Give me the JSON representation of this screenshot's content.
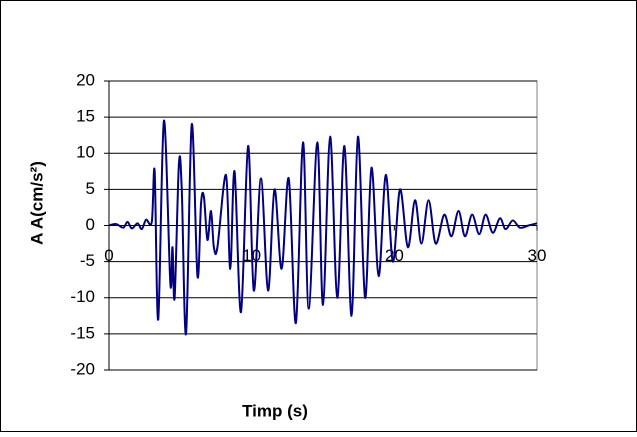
{
  "chart_data": {
    "type": "line",
    "x_label": "Timp (s)",
    "y_label": "A A(cm/s²)",
    "xlim": [
      0,
      30
    ],
    "xticks": [
      0,
      10,
      20,
      30
    ],
    "ylim": [
      -20,
      20
    ],
    "yticks": [
      -20,
      -15,
      -10,
      -5,
      0,
      5,
      10,
      15,
      20
    ],
    "grid": true,
    "series": [
      {
        "color": "#000080",
        "x": [
          0,
          0.5,
          1,
          1.3,
          1.6,
          2,
          2.3,
          2.6,
          3.0,
          3.2,
          3.45,
          3.85,
          4.3,
          4.45,
          4.6,
          4.9,
          5.1,
          5.4,
          5.8,
          6.2,
          6.45,
          6.65,
          6.9,
          7.15,
          7.35,
          7.6,
          8.2,
          8.5,
          8.8,
          9.25,
          9.75,
          10.15,
          10.65,
          11.15,
          11.6,
          12.1,
          12.6,
          13.1,
          13.6,
          14.0,
          14.6,
          15.0,
          15.5,
          16.0,
          16.5,
          17.0,
          17.45,
          17.95,
          18.4,
          18.9,
          19.4,
          19.9,
          20.4,
          20.95,
          21.45,
          21.9,
          22.4,
          22.9,
          23.5,
          24.0,
          24.5,
          24.95,
          25.45,
          25.95,
          26.4,
          26.9,
          27.4,
          27.8,
          28.3,
          28.8,
          29.4,
          30
        ],
        "values": [
          0,
          0.2,
          -0.3,
          0.5,
          -0.4,
          0.3,
          -0.5,
          0.8,
          0.5,
          7.5,
          -13,
          14.5,
          -8,
          -3,
          -10,
          8.5,
          5,
          -15,
          14,
          -7,
          3,
          4,
          -2,
          2,
          -3,
          -3,
          7,
          -6,
          7.5,
          -12,
          11,
          -9,
          6.5,
          -9,
          5,
          -6,
          6.5,
          -13.5,
          11.5,
          -11.5,
          11.5,
          -11,
          12.3,
          -10,
          11,
          -12.5,
          12.3,
          -10,
          8,
          -7,
          7,
          -5,
          5,
          -3,
          3.5,
          -2.5,
          3.5,
          -2.5,
          1.5,
          -1.5,
          2,
          -1.5,
          1.5,
          -1.2,
          1.5,
          -1,
          1,
          -0.5,
          0.7,
          -0.3,
          0,
          0.3
        ]
      }
    ]
  }
}
